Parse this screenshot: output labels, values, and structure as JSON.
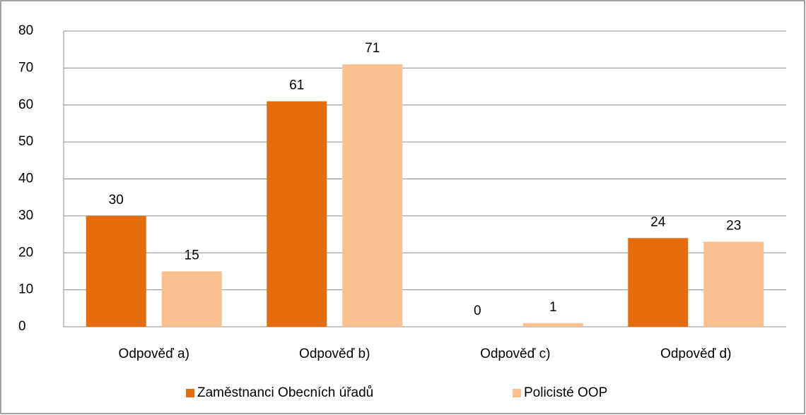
{
  "chart_data": {
    "type": "bar",
    "categories": [
      "Odpověď a)",
      "Odpověď b)",
      "Odpověď c)",
      "Odpověď d)"
    ],
    "series": [
      {
        "name": "Zaměstnanci Obecních úřadů",
        "color": "#e46c0a",
        "values": [
          30,
          61,
          0,
          24
        ]
      },
      {
        "name": "Policisté OOP",
        "color": "#fac090",
        "values": [
          15,
          71,
          1,
          23
        ]
      }
    ],
    "ylim": [
      0,
      80
    ],
    "yticks": [
      0,
      10,
      20,
      30,
      40,
      50,
      60,
      70,
      80
    ],
    "grid": true,
    "legend": "bottom"
  }
}
